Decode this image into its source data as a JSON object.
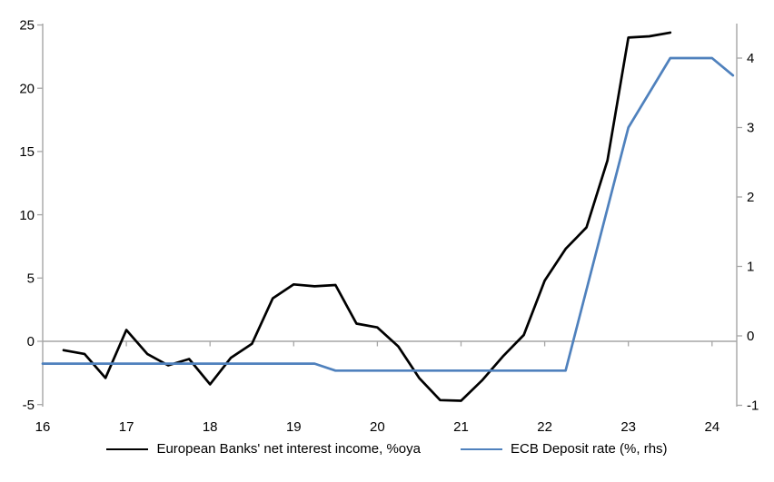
{
  "chart_data": {
    "type": "line",
    "title": "",
    "x_axis": {
      "tick_labels": [
        "16",
        "17",
        "18",
        "19",
        "20",
        "21",
        "22",
        "23",
        "24"
      ],
      "tick_values": [
        16,
        17,
        18,
        19,
        20,
        21,
        22,
        23,
        24
      ],
      "min": 16,
      "max": 24.3
    },
    "left_axis": {
      "tick_values": [
        25,
        20,
        15,
        10,
        5,
        0,
        -5
      ],
      "min": -5.4,
      "max": 25.2
    },
    "right_axis": {
      "tick_values": [
        4,
        3,
        2,
        1,
        0,
        -1
      ],
      "min": -1.1,
      "max": 4.5
    },
    "zero_line": true,
    "grid": "zero-line-only",
    "axis_color": "#a6a6a6",
    "legend_position": "bottom-center",
    "series": [
      {
        "name": "European Banks' net interest income, %oya",
        "axis": "left",
        "color": "#000000",
        "x": [
          16.25,
          16.5,
          16.75,
          17.0,
          17.25,
          17.5,
          17.75,
          18.0,
          18.25,
          18.5,
          18.75,
          19.0,
          19.25,
          19.5,
          19.75,
          20.0,
          20.25,
          20.5,
          20.75,
          21.0,
          21.25,
          21.5,
          21.75,
          22.0,
          22.25,
          22.5,
          22.75,
          23.0,
          23.25,
          23.5
        ],
        "values": [
          -0.7,
          -1.0,
          -2.9,
          0.9,
          -1.0,
          -1.9,
          -1.4,
          -3.4,
          -1.3,
          -0.2,
          3.4,
          4.5,
          4.35,
          4.45,
          1.4,
          1.1,
          -0.4,
          -2.9,
          -4.65,
          -4.7,
          -3.1,
          -1.2,
          0.5,
          4.8,
          7.3,
          9.0,
          14.3,
          24.0,
          24.1,
          24.4
        ]
      },
      {
        "name": "ECB Deposit rate (%, rhs)",
        "axis": "right",
        "color": "#4f81bd",
        "x": [
          16.0,
          19.25,
          19.5,
          22.25,
          23.0,
          23.5,
          24.0,
          24.25
        ],
        "values": [
          -0.4,
          -0.4,
          -0.5,
          -0.5,
          3.0,
          4.0,
          4.0,
          3.75
        ]
      }
    ]
  }
}
